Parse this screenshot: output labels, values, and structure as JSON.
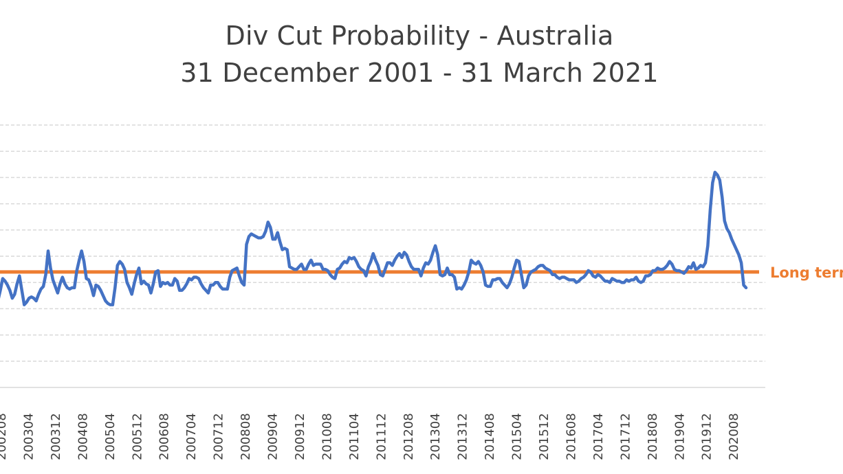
{
  "chart_data": {
    "type": "line",
    "title": "Div Cut Probability - Australia",
    "subtitle": "31 December 2001 - 31 March 2021",
    "xlabel": "",
    "ylabel": "",
    "grid": true,
    "colors": {
      "series": "#4472C4",
      "reference": "#ED7D31",
      "grid": "#D9D9D9",
      "text": "#404040"
    },
    "tick_labels": [
      "200208",
      "200304",
      "200312",
      "200408",
      "200504",
      "200512",
      "200608",
      "200704",
      "200712",
      "200808",
      "200904",
      "200912",
      "201008",
      "201104",
      "201112",
      "201208",
      "201304",
      "201312",
      "201408",
      "201504",
      "201512",
      "201608",
      "201704",
      "201712",
      "201808",
      "201904",
      "201912",
      "202008"
    ],
    "reference_line": {
      "label": "Long term",
      "value": 8.8
    },
    "series": [
      {
        "values": [
          6.6,
          7.4,
          8.3,
          8.1,
          7.8,
          7.4,
          6.8,
          7.1,
          7.9,
          8.5,
          7.4,
          6.3,
          6.5,
          6.8,
          6.9,
          6.8,
          6.6,
          7.1,
          7.5,
          7.7,
          8.6,
          10.4,
          9.1,
          8.2,
          7.7,
          7.2,
          7.9,
          8.4,
          7.9,
          7.6,
          7.5,
          7.6,
          7.6,
          8.9,
          9.7,
          10.4,
          9.6,
          8.3,
          8.2,
          7.7,
          7.0,
          7.8,
          7.7,
          7.4,
          7.0,
          6.6,
          6.4,
          6.3,
          6.3,
          7.6,
          9.3,
          9.6,
          9.4,
          9.0,
          8.0,
          7.6,
          7.1,
          7.9,
          8.6,
          9.1,
          7.9,
          8.1,
          7.9,
          7.8,
          7.2,
          7.9,
          8.8,
          8.9,
          7.7,
          8.0,
          7.9,
          8.0,
          7.8,
          7.8,
          8.3,
          8.1,
          7.4,
          7.4,
          7.6,
          7.9,
          8.3,
          8.2,
          8.4,
          8.4,
          8.3,
          7.9,
          7.6,
          7.4,
          7.2,
          7.8,
          7.8,
          8.0,
          8.0,
          7.7,
          7.5,
          7.5,
          7.5,
          8.4,
          8.9,
          9.0,
          9.1,
          8.5,
          8.0,
          7.8,
          10.9,
          11.5,
          11.7,
          11.6,
          11.5,
          11.4,
          11.4,
          11.5,
          11.9,
          12.6,
          12.2,
          11.3,
          11.3,
          11.8,
          11.1,
          10.5,
          10.6,
          10.5,
          9.2,
          9.1,
          9.0,
          9.0,
          9.2,
          9.4,
          9.0,
          9.0,
          9.4,
          9.7,
          9.3,
          9.4,
          9.4,
          9.4,
          9.0,
          9.0,
          8.9,
          8.6,
          8.4,
          8.3,
          9.0,
          9.1,
          9.4,
          9.6,
          9.5,
          9.9,
          9.8,
          9.9,
          9.6,
          9.2,
          9.0,
          8.9,
          8.5,
          9.2,
          9.6,
          10.2,
          9.7,
          9.3,
          8.6,
          8.5,
          9.0,
          9.5,
          9.5,
          9.3,
          9.7,
          10.0,
          10.2,
          9.9,
          10.3,
          10.1,
          9.6,
          9.2,
          9.0,
          9.0,
          9.0,
          8.5,
          9.1,
          9.5,
          9.4,
          9.7,
          10.3,
          10.8,
          10.1,
          8.6,
          8.5,
          8.6,
          9.1,
          8.6,
          8.6,
          8.4,
          7.5,
          7.6,
          7.5,
          7.8,
          8.2,
          8.8,
          9.7,
          9.5,
          9.4,
          9.6,
          9.3,
          8.8,
          7.8,
          7.7,
          7.7,
          8.2,
          8.2,
          8.3,
          8.3,
          8.0,
          7.8,
          7.6,
          7.9,
          8.4,
          9.1,
          9.7,
          9.6,
          8.6,
          7.6,
          7.8,
          8.5,
          8.8,
          8.9,
          9.0,
          9.2,
          9.3,
          9.3,
          9.1,
          9.0,
          8.9,
          8.6,
          8.6,
          8.4,
          8.3,
          8.4,
          8.4,
          8.3,
          8.2,
          8.2,
          8.2,
          8.0,
          8.1,
          8.3,
          8.4,
          8.6,
          8.9,
          8.8,
          8.5,
          8.4,
          8.6,
          8.5,
          8.3,
          8.1,
          8.1,
          8.0,
          8.3,
          8.2,
          8.1,
          8.1,
          8.0,
          8.0,
          8.2,
          8.1,
          8.2,
          8.2,
          8.4,
          8.1,
          8.0,
          8.1,
          8.5,
          8.5,
          8.6,
          8.9,
          8.9,
          9.1,
          9.0,
          9.0,
          9.1,
          9.3,
          9.6,
          9.4,
          9.0,
          8.9,
          8.9,
          8.8,
          8.7,
          8.9,
          9.2,
          9.1,
          9.5,
          9.0,
          9.1,
          9.3,
          9.2,
          9.5,
          10.8,
          13.5,
          15.6,
          16.4,
          16.2,
          15.8,
          14.5,
          12.7,
          12.1,
          11.8,
          11.3,
          10.9,
          10.5,
          10.1,
          9.5,
          7.8,
          7.6
        ]
      }
    ]
  }
}
